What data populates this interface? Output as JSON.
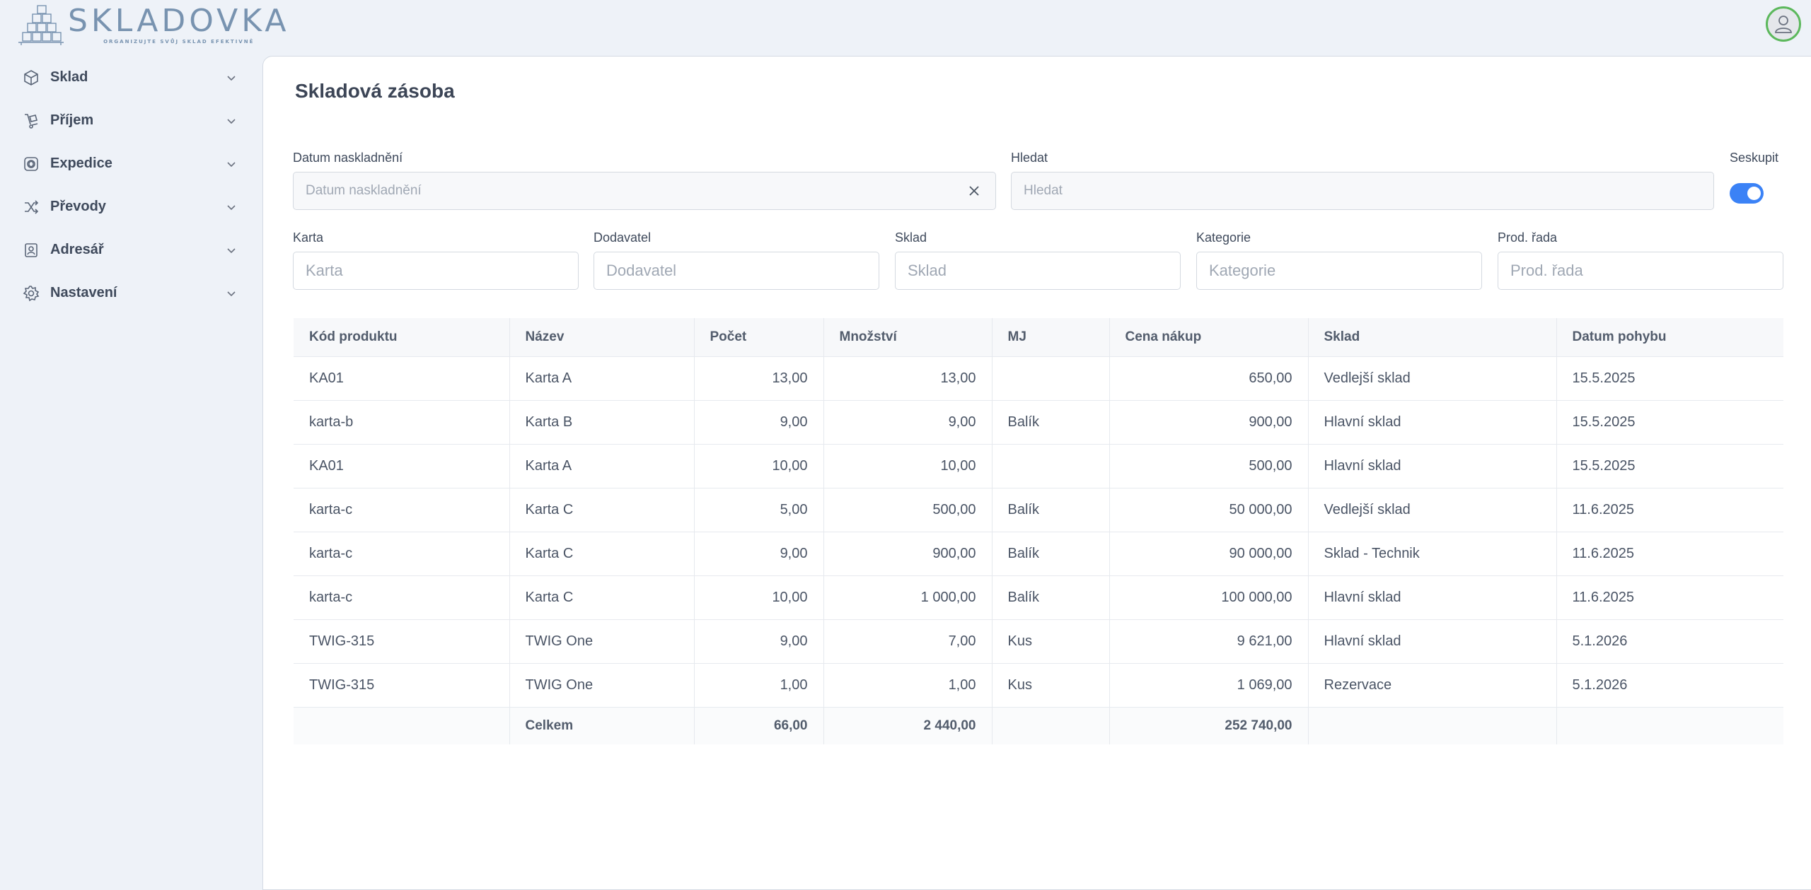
{
  "app": {
    "logo_title": "SKLADOVKA",
    "logo_subtitle": "ORGANIZUJTE SVŮJ SKLAD EFEKTIVNĚ"
  },
  "sidebar": {
    "items": [
      {
        "label": "Sklad",
        "icon": "box-icon"
      },
      {
        "label": "Příjem",
        "icon": "hand-truck-icon"
      },
      {
        "label": "Expedice",
        "icon": "shipping-icon"
      },
      {
        "label": "Převody",
        "icon": "shuffle-icon"
      },
      {
        "label": "Adresář",
        "icon": "contacts-icon"
      },
      {
        "label": "Nastavení",
        "icon": "gear-icon"
      }
    ]
  },
  "page": {
    "title": "Skladová zásoba"
  },
  "filters": {
    "date_label": "Datum naskladnění",
    "date_placeholder": "Datum naskladnění",
    "search_label": "Hledat",
    "search_placeholder": "Hledat",
    "group_label": "Seskupit",
    "group_on": true,
    "card_label": "Karta",
    "card_placeholder": "Karta",
    "supplier_label": "Dodavatel",
    "supplier_placeholder": "Dodavatel",
    "warehouse_label": "Sklad",
    "warehouse_placeholder": "Sklad",
    "category_label": "Kategorie",
    "category_placeholder": "Kategorie",
    "line_label": "Prod. řada",
    "line_placeholder": "Prod. řada"
  },
  "table": {
    "columns": [
      "Kód produktu",
      "Název",
      "Počet",
      "Množství",
      "MJ",
      "Cena nákup",
      "Sklad",
      "Datum pohybu"
    ],
    "rows": [
      [
        "KA01",
        "Karta A",
        "13,00",
        "13,00",
        "",
        "650,00",
        "Vedlejší sklad",
        "15.5.2025"
      ],
      [
        "karta-b",
        "Karta B",
        "9,00",
        "9,00",
        "Balík",
        "900,00",
        "Hlavní sklad",
        "15.5.2025"
      ],
      [
        "KA01",
        "Karta A",
        "10,00",
        "10,00",
        "",
        "500,00",
        "Hlavní sklad",
        "15.5.2025"
      ],
      [
        "karta-c",
        "Karta C",
        "5,00",
        "500,00",
        "Balík",
        "50 000,00",
        "Vedlejší sklad",
        "11.6.2025"
      ],
      [
        "karta-c",
        "Karta C",
        "9,00",
        "900,00",
        "Balík",
        "90 000,00",
        "Sklad - Technik",
        "11.6.2025"
      ],
      [
        "karta-c",
        "Karta C",
        "10,00",
        "1 000,00",
        "Balík",
        "100 000,00",
        "Hlavní sklad",
        "11.6.2025"
      ],
      [
        "TWIG-315",
        "TWIG One",
        "9,00",
        "7,00",
        "Kus",
        "9 621,00",
        "Hlavní sklad",
        "5.1.2026"
      ],
      [
        "TWIG-315",
        "TWIG One",
        "1,00",
        "1,00",
        "Kus",
        "1 069,00",
        "Rezervace",
        "5.1.2026"
      ]
    ],
    "total": [
      "",
      "Celkem",
      "66,00",
      "2 440,00",
      "",
      "252 740,00",
      "",
      ""
    ]
  }
}
